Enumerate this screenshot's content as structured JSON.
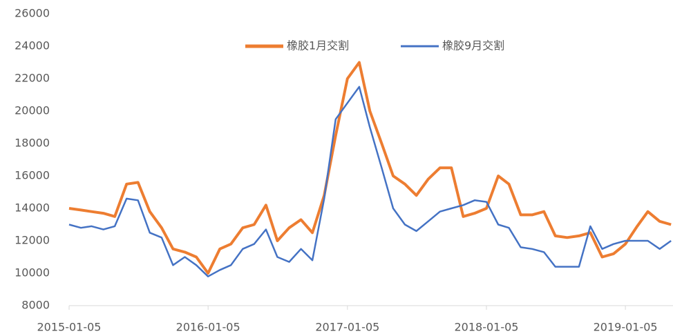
{
  "chart_data": {
    "type": "line",
    "x": [
      "2015-01-05",
      "2015-02-05",
      "2015-03-05",
      "2015-04-05",
      "2015-05-05",
      "2015-06-05",
      "2015-07-05",
      "2015-08-05",
      "2015-09-05",
      "2015-10-05",
      "2015-11-05",
      "2015-12-05",
      "2016-01-05",
      "2016-02-05",
      "2016-03-05",
      "2016-04-05",
      "2016-05-05",
      "2016-06-05",
      "2016-07-05",
      "2016-08-05",
      "2016-09-05",
      "2016-10-05",
      "2016-11-05",
      "2016-12-05",
      "2017-01-05",
      "2017-02-05",
      "2017-03-05",
      "2017-04-05",
      "2017-05-05",
      "2017-06-05",
      "2017-07-05",
      "2017-08-05",
      "2017-09-05",
      "2017-10-05",
      "2017-11-05",
      "2017-12-05",
      "2018-01-05",
      "2018-02-05",
      "2018-03-05",
      "2018-04-05",
      "2018-05-05",
      "2018-06-05",
      "2018-07-05",
      "2018-08-05",
      "2018-09-05",
      "2018-10-05",
      "2018-11-05",
      "2018-12-05",
      "2019-01-05",
      "2019-02-05",
      "2019-03-05",
      "2019-04-05",
      "2019-05-05"
    ],
    "series": [
      {
        "name": "橡胶1月交割",
        "color": "#ED7D31",
        "values": [
          14000,
          13900,
          13800,
          13700,
          13500,
          15500,
          15600,
          13800,
          12800,
          11500,
          11300,
          11000,
          10000,
          11500,
          11800,
          12800,
          13000,
          14200,
          12000,
          12800,
          13300,
          12500,
          14800,
          18500,
          22000,
          23000,
          20000,
          18000,
          16000,
          15500,
          14800,
          15800,
          16500,
          16500,
          13500,
          13700,
          14000,
          16000,
          15500,
          13600,
          13600,
          13800,
          12300,
          12200,
          12300,
          12500,
          11000,
          11200,
          11800,
          12900,
          13800,
          13200,
          13000
        ]
      },
      {
        "name": "橡胶9月交割",
        "color": "#4472C4",
        "values": [
          13000,
          12800,
          12900,
          12700,
          12900,
          14600,
          14500,
          12500,
          12200,
          10500,
          11000,
          10500,
          9800,
          10200,
          10500,
          11500,
          11800,
          12700,
          11000,
          10700,
          11500,
          10800,
          14600,
          19500,
          20500,
          21500,
          19000,
          16500,
          14000,
          13000,
          12600,
          13200,
          13800,
          14000,
          14200,
          14500,
          14400,
          13000,
          12800,
          11600,
          11500,
          11300,
          10400,
          10400,
          10400,
          12900,
          11500,
          11800,
          12000,
          12000,
          12000,
          11500,
          12000
        ]
      }
    ],
    "xlim": [
      "2015-01-05",
      "2019-05-10"
    ],
    "xticks": [
      "2015-01-05",
      "2016-01-05",
      "2017-01-05",
      "2018-01-05",
      "2019-01-05"
    ],
    "ylim": [
      8000,
      26000
    ],
    "yticks": [
      8000,
      10000,
      12000,
      14000,
      16000,
      18000,
      20000,
      22000,
      24000,
      26000
    ],
    "legend": "top"
  }
}
